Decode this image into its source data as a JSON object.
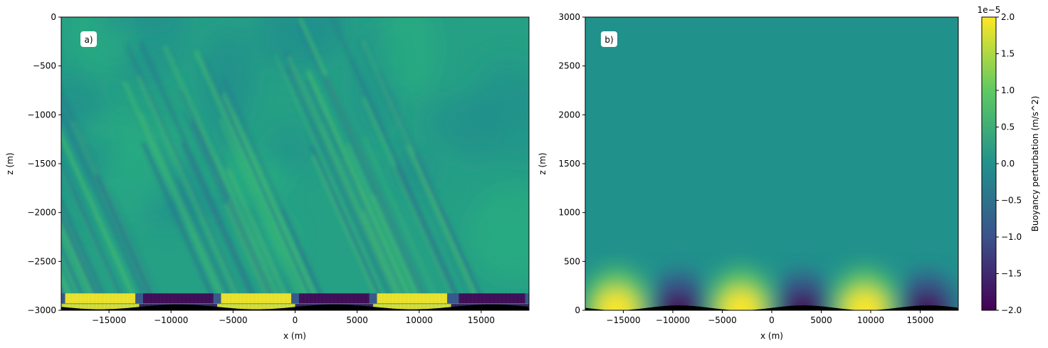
{
  "chart_data": [
    {
      "type": "heatmap",
      "panel_label": "a)",
      "xlabel": "x (m)",
      "ylabel": "z (m)",
      "xlim": [
        -18850,
        18850
      ],
      "ylim": [
        -3000,
        0
      ],
      "xticks": [
        -15000,
        -10000,
        -5000,
        0,
        5000,
        10000,
        15000
      ],
      "xtick_labels": [
        "−15000",
        "−10000",
        "−5000",
        "0",
        "5000",
        "10000",
        "15000"
      ],
      "yticks": [
        0,
        -500,
        -1000,
        -1500,
        -2000,
        -2500,
        -3000
      ],
      "ytick_labels": [
        "0",
        "−500",
        "−1000",
        "−1500",
        "−2000",
        "−2500",
        "−3000"
      ],
      "field_description": "",
      "bottom_topography_color": "#000000"
    },
    {
      "type": "heatmap",
      "panel_label": "b)",
      "xlabel": "x (m)",
      "ylabel": "z (m)",
      "xlim": [
        -18850,
        18850
      ],
      "ylim": [
        0,
        3000
      ],
      "xticks": [
        -15000,
        -10000,
        -5000,
        0,
        5000,
        10000,
        15000
      ],
      "xtick_labels": [
        "−15000",
        "−10000",
        "−5000",
        "0",
        "5000",
        "10000",
        "15000"
      ],
      "yticks": [
        0,
        500,
        1000,
        1500,
        2000,
        2500,
        3000
      ],
      "ytick_labels": [
        "0",
        "500",
        "1000",
        "1500",
        "2000",
        "2500",
        "3000"
      ],
      "bottom_topography_color": "#000000",
      "anomaly_centers_x": [
        -15700,
        -9400,
        -3100,
        3100,
        9400,
        15700
      ],
      "anomaly_values": [
        2e-05,
        -2e-05,
        2e-05,
        -2e-05,
        2e-05,
        -2e-05
      ]
    }
  ],
  "colorbar": {
    "label": "Buoyancy perturbation (m/s^2)",
    "scale_label": "1e−5",
    "range": [
      -2.0,
      2.0
    ],
    "ticks": [
      2.0,
      1.5,
      1.0,
      0.5,
      0.0,
      -0.5,
      -1.0,
      -1.5,
      -2.0
    ],
    "tick_labels": [
      "2.0",
      "1.5",
      "1.0",
      "0.5",
      "0.0",
      "−0.5",
      "−1.0",
      "−1.5",
      "−2.0"
    ],
    "colormap": "viridis",
    "colors": [
      "#440154",
      "#3b528b",
      "#21918c",
      "#5ec962",
      "#fde725"
    ]
  }
}
